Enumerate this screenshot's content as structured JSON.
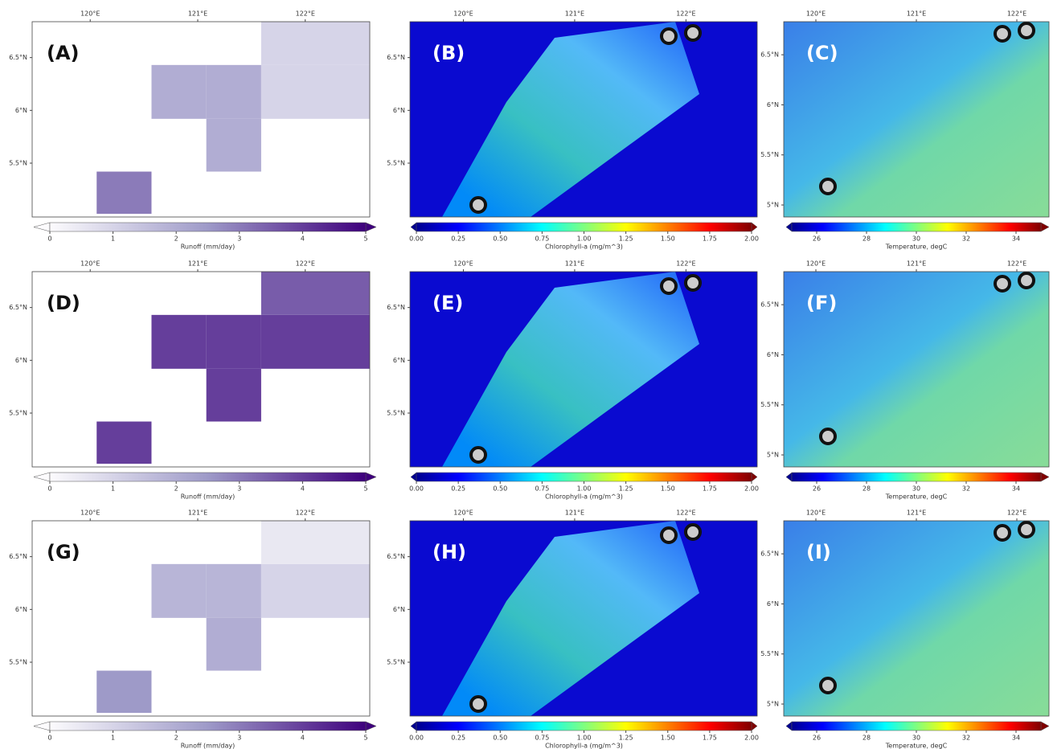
{
  "chart_data": {
    "type": "map-grid",
    "panels": [
      {
        "label": "(A)",
        "type": "runoff",
        "xlim": [
          119.46,
          122.6
        ],
        "ylim": [
          4.99,
          6.84
        ],
        "xticks": [
          {
            "value": 120,
            "label": "120°E"
          },
          {
            "value": 121,
            "label": "121°E"
          },
          {
            "value": 122,
            "label": "122°E"
          }
        ],
        "yticks": [
          {
            "value": 5.5,
            "label": "5.5°N"
          },
          {
            "value": 6,
            "label": "6°N"
          },
          {
            "value": 6.5,
            "label": "6.5°N"
          }
        ],
        "colorbar": {
          "label": "Runoff (mm/day)",
          "lim": [
            0,
            5
          ],
          "ticks": [
            0,
            1,
            2,
            3,
            4,
            5
          ]
        },
        "cells": [
          {
            "lon": [
              120.06,
              120.57
            ],
            "lat": [
              5.02,
              5.42
            ],
            "value": 3
          },
          {
            "lon": [
              120.57,
              121.08
            ],
            "lat": [
              5.92,
              6.43
            ],
            "value": 2
          },
          {
            "lon": [
              121.08,
              121.59
            ],
            "lat": [
              5.92,
              6.43
            ],
            "value": 2
          },
          {
            "lon": [
              121.08,
              121.59
            ],
            "lat": [
              5.42,
              5.92
            ],
            "value": 2
          },
          {
            "lon": [
              121.59,
              122.6
            ],
            "lat": [
              5.92,
              6.43
            ],
            "value": 1
          },
          {
            "lon": [
              121.59,
              122.6
            ],
            "lat": [
              6.43,
              6.84
            ],
            "value": 1
          }
        ]
      },
      {
        "label": "(B)",
        "type": "chlorophyll",
        "xlim": [
          119.52,
          122.64
        ],
        "ylim": [
          4.99,
          6.84
        ],
        "xticks": [
          {
            "value": 120,
            "label": "120°E"
          },
          {
            "value": 121,
            "label": "121°E"
          },
          {
            "value": 122,
            "label": "122°E"
          }
        ],
        "yticks": [
          {
            "value": 5.5,
            "label": "5.5°N"
          },
          {
            "value": 6,
            "label": "6°N"
          },
          {
            "value": 6.5,
            "label": "6.5°N"
          }
        ],
        "colorbar": {
          "label": "Chlorophyll-a (mg/m^3)",
          "lim": [
            0,
            2
          ],
          "ticks": [
            {
              "value": 0,
              "label": "0.00"
            },
            {
              "value": 0.25,
              "label": "0.25"
            },
            {
              "value": 0.5,
              "label": "0.50"
            },
            {
              "value": 0.75,
              "label": "0.75"
            },
            {
              "value": 1,
              "label": "1.00"
            },
            {
              "value": 1.25,
              "label": "1.25"
            },
            {
              "value": 1.5,
              "label": "1.50"
            },
            {
              "value": 1.75,
              "label": "1.75"
            },
            {
              "value": 2,
              "label": "2.00"
            }
          ]
        }
      },
      {
        "label": "(C)",
        "type": "temperature",
        "xlim": [
          119.68,
          122.32
        ],
        "ylim": [
          4.88,
          6.83
        ],
        "xticks": [
          {
            "value": 120,
            "label": "120°E"
          },
          {
            "value": 121,
            "label": "121°E"
          },
          {
            "value": 122,
            "label": "122°E"
          }
        ],
        "yticks": [
          {
            "value": 5,
            "label": "5°N"
          },
          {
            "value": 5.5,
            "label": "5.5°N"
          },
          {
            "value": 6,
            "label": "6°N"
          },
          {
            "value": 6.5,
            "label": "6.5°N"
          }
        ],
        "colorbar": {
          "label": "Temperature, degC",
          "lim": [
            25,
            35
          ],
          "ticks": [
            26,
            28,
            30,
            32,
            34
          ]
        }
      },
      {
        "label": "(D)",
        "type": "runoff",
        "xlim": [
          119.46,
          122.6
        ],
        "ylim": [
          4.99,
          6.84
        ],
        "xticks": [
          {
            "value": 120,
            "label": "120°E"
          },
          {
            "value": 121,
            "label": "121°E"
          },
          {
            "value": 122,
            "label": "122°E"
          }
        ],
        "yticks": [
          {
            "value": 5.5,
            "label": "5.5°N"
          },
          {
            "value": 6,
            "label": "6°N"
          },
          {
            "value": 6.5,
            "label": "6.5°N"
          }
        ],
        "colorbar": {
          "label": "Runoff (mm/day)",
          "lim": [
            0,
            5
          ],
          "ticks": [
            0,
            1,
            2,
            3,
            4,
            5
          ]
        },
        "cells": [
          {
            "lon": [
              120.06,
              120.57
            ],
            "lat": [
              5.02,
              5.42
            ],
            "value": 4
          },
          {
            "lon": [
              120.57,
              121.08
            ],
            "lat": [
              5.92,
              6.43
            ],
            "value": 4
          },
          {
            "lon": [
              121.08,
              121.59
            ],
            "lat": [
              5.92,
              6.43
            ],
            "value": 4
          },
          {
            "lon": [
              121.08,
              121.59
            ],
            "lat": [
              5.42,
              5.92
            ],
            "value": 4
          },
          {
            "lon": [
              121.59,
              122.6
            ],
            "lat": [
              5.92,
              6.43
            ],
            "value": 4
          },
          {
            "lon": [
              121.59,
              122.6
            ],
            "lat": [
              6.43,
              6.84
            ],
            "value": 3.5
          }
        ]
      },
      {
        "label": "(E)",
        "type": "chlorophyll",
        "xlim": [
          119.52,
          122.64
        ],
        "ylim": [
          4.99,
          6.84
        ],
        "xticks": [
          {
            "value": 120,
            "label": "120°E"
          },
          {
            "value": 121,
            "label": "121°E"
          },
          {
            "value": 122,
            "label": "122°E"
          }
        ],
        "yticks": [
          {
            "value": 5.5,
            "label": "5.5°N"
          },
          {
            "value": 6,
            "label": "6°N"
          },
          {
            "value": 6.5,
            "label": "6.5°N"
          }
        ],
        "colorbar": {
          "label": "Chlorophyll-a (mg/m^3)",
          "lim": [
            0,
            2
          ],
          "ticks": [
            {
              "value": 0,
              "label": "0.00"
            },
            {
              "value": 0.25,
              "label": "0.25"
            },
            {
              "value": 0.5,
              "label": "0.50"
            },
            {
              "value": 0.75,
              "label": "0.75"
            },
            {
              "value": 1,
              "label": "1.00"
            },
            {
              "value": 1.25,
              "label": "1.25"
            },
            {
              "value": 1.5,
              "label": "1.50"
            },
            {
              "value": 1.75,
              "label": "1.75"
            },
            {
              "value": 2,
              "label": "2.00"
            }
          ]
        }
      },
      {
        "label": "(F)",
        "type": "temperature",
        "xlim": [
          119.68,
          122.32
        ],
        "ylim": [
          4.88,
          6.83
        ],
        "xticks": [
          {
            "value": 120,
            "label": "120°E"
          },
          {
            "value": 121,
            "label": "121°E"
          },
          {
            "value": 122,
            "label": "122°E"
          }
        ],
        "yticks": [
          {
            "value": 5,
            "label": "5°N"
          },
          {
            "value": 5.5,
            "label": "5.5°N"
          },
          {
            "value": 6,
            "label": "6°N"
          },
          {
            "value": 6.5,
            "label": "6.5°N"
          }
        ],
        "colorbar": {
          "label": "Temperature, degC",
          "lim": [
            25,
            35
          ],
          "ticks": [
            26,
            28,
            30,
            32,
            34
          ]
        }
      },
      {
        "label": "(G)",
        "type": "runoff",
        "xlim": [
          119.46,
          122.6
        ],
        "ylim": [
          4.99,
          6.84
        ],
        "xticks": [
          {
            "value": 120,
            "label": "120°E"
          },
          {
            "value": 121,
            "label": "121°E"
          },
          {
            "value": 122,
            "label": "122°E"
          }
        ],
        "yticks": [
          {
            "value": 5.5,
            "label": "5.5°N"
          },
          {
            "value": 6,
            "label": "6°N"
          },
          {
            "value": 6.5,
            "label": "6.5°N"
          }
        ],
        "colorbar": {
          "label": "Runoff (mm/day)",
          "lim": [
            0,
            5
          ],
          "ticks": [
            0,
            1,
            2,
            3,
            4,
            5
          ]
        },
        "cells": [
          {
            "lon": [
              120.06,
              120.57
            ],
            "lat": [
              5.02,
              5.42
            ],
            "value": 2.5
          },
          {
            "lon": [
              120.57,
              121.08
            ],
            "lat": [
              5.92,
              6.43
            ],
            "value": 1.8
          },
          {
            "lon": [
              121.08,
              121.59
            ],
            "lat": [
              5.92,
              6.43
            ],
            "value": 1.8
          },
          {
            "lon": [
              121.08,
              121.59
            ],
            "lat": [
              5.42,
              5.92
            ],
            "value": 2
          },
          {
            "lon": [
              121.59,
              122.6
            ],
            "lat": [
              5.92,
              6.43
            ],
            "value": 1
          },
          {
            "lon": [
              121.59,
              122.6
            ],
            "lat": [
              6.43,
              6.84
            ],
            "value": 0.5
          }
        ]
      },
      {
        "label": "(H)",
        "type": "chlorophyll",
        "xlim": [
          119.52,
          122.64
        ],
        "ylim": [
          4.99,
          6.84
        ],
        "xticks": [
          {
            "value": 120,
            "label": "120°E"
          },
          {
            "value": 121,
            "label": "121°E"
          },
          {
            "value": 122,
            "label": "122°E"
          }
        ],
        "yticks": [
          {
            "value": 5.5,
            "label": "5.5°N"
          },
          {
            "value": 6,
            "label": "6°N"
          },
          {
            "value": 6.5,
            "label": "6.5°N"
          }
        ],
        "colorbar": {
          "label": "Chlorophyll-a (mg/m^3)",
          "lim": [
            0,
            2
          ],
          "ticks": [
            {
              "value": 0,
              "label": "0.00"
            },
            {
              "value": 0.25,
              "label": "0.25"
            },
            {
              "value": 0.5,
              "label": "0.50"
            },
            {
              "value": 0.75,
              "label": "0.75"
            },
            {
              "value": 1,
              "label": "1.00"
            },
            {
              "value": 1.25,
              "label": "1.25"
            },
            {
              "value": 1.5,
              "label": "1.50"
            },
            {
              "value": 1.75,
              "label": "1.75"
            },
            {
              "value": 2,
              "label": "2.00"
            }
          ]
        }
      },
      {
        "label": "(I)",
        "type": "temperature",
        "xlim": [
          119.68,
          122.32
        ],
        "ylim": [
          4.88,
          6.83
        ],
        "xticks": [
          {
            "value": 120,
            "label": "120°E"
          },
          {
            "value": 121,
            "label": "121°E"
          },
          {
            "value": 122,
            "label": "122°E"
          }
        ],
        "yticks": [
          {
            "value": 5,
            "label": "5°N"
          },
          {
            "value": 5.5,
            "label": "5.5°N"
          },
          {
            "value": 6,
            "label": "6°N"
          },
          {
            "value": 6.5,
            "label": "6.5°N"
          }
        ],
        "colorbar": {
          "label": "Temperature, degC",
          "lim": [
            25,
            35
          ],
          "ticks": [
            26,
            28,
            30,
            32,
            34
          ]
        }
      }
    ]
  }
}
